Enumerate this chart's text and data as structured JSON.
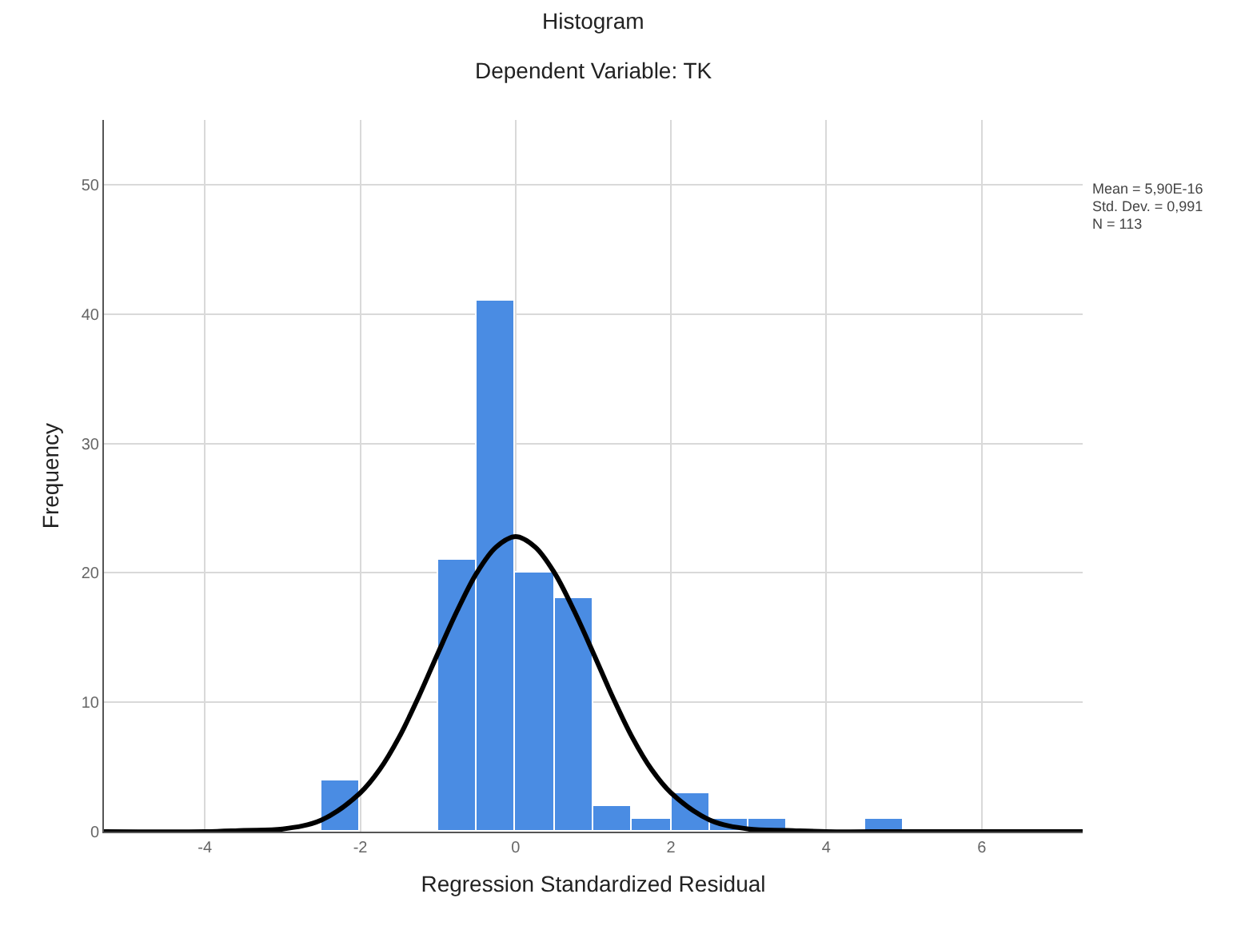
{
  "chart_data": {
    "type": "histogram",
    "title": "Histogram",
    "subtitle": "Dependent Variable: TK",
    "xlabel": "Regression Standardized Residual",
    "ylabel": "Frequency",
    "annotations": [
      "Mean = 5,90E-16",
      "Std. Dev. = 0,991",
      "N = 113"
    ],
    "xlim": [
      -5.3,
      7.3
    ],
    "xticks": [
      -4,
      -2,
      0,
      2,
      4,
      6
    ],
    "ylim": [
      0,
      55
    ],
    "yticks": [
      0,
      10,
      20,
      30,
      40,
      50
    ],
    "grid": true,
    "series": [
      {
        "color": "#4a8ce3",
        "bins": [
          -2.5,
          -2,
          -1.5,
          -1,
          -0.5,
          0,
          0.5,
          1,
          1.5,
          2,
          2.5,
          3,
          3.5,
          4,
          4.5,
          5
        ],
        "values": [
          4,
          0,
          0,
          21,
          41,
          20,
          18,
          2,
          1,
          3,
          1,
          1,
          0,
          0,
          1
        ]
      },
      {
        "type": "line",
        "color": "#000000",
        "x": [
          -5.3,
          -4,
          -3.5,
          -3,
          -2.5,
          -2,
          -1.75,
          -1.5,
          -1.25,
          -1,
          -0.75,
          -0.5,
          -0.25,
          0,
          0.25,
          0.5,
          0.75,
          1,
          1.25,
          1.5,
          1.75,
          2,
          2.5,
          3,
          3.5,
          4,
          5,
          7.3
        ],
        "values": [
          0,
          0,
          0.1,
          0.2,
          0.9,
          3.0,
          4.8,
          7.3,
          10.4,
          13.8,
          17.1,
          20.0,
          22.0,
          22.8,
          22.0,
          20.0,
          17.1,
          13.8,
          10.4,
          7.3,
          4.8,
          3.0,
          0.9,
          0.2,
          0.1,
          0,
          0,
          0
        ]
      }
    ]
  }
}
